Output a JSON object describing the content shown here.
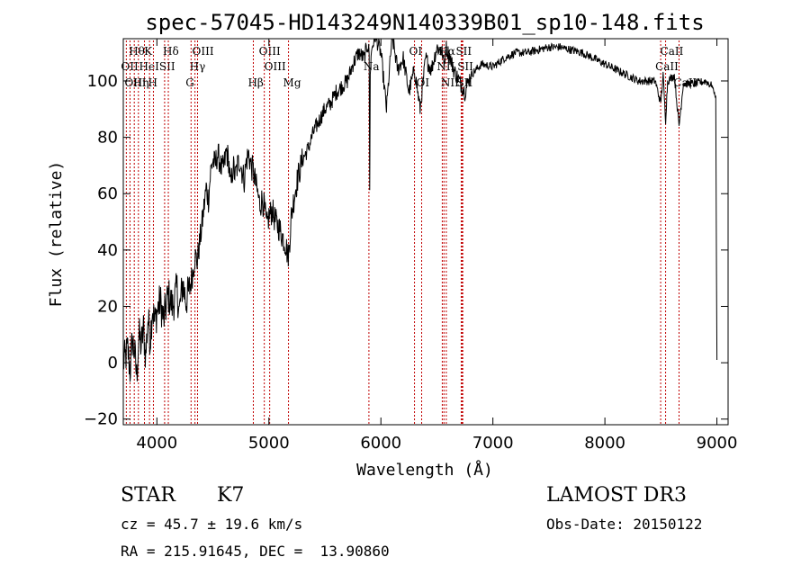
{
  "chart_data": {
    "type": "line",
    "title": "spec-57045-HD143249N140339B01_sp10-148.fits",
    "xlabel": "Wavelength (Å)",
    "ylabel": "Flux (relative)",
    "xlim": [
      3700,
      9100
    ],
    "ylim": [
      -22,
      115
    ],
    "x_ticks": [
      4000,
      5000,
      6000,
      7000,
      8000,
      9000
    ],
    "y_ticks": [
      -20,
      0,
      20,
      40,
      60,
      80,
      100
    ],
    "series": [
      {
        "name": "flux",
        "x": [
          3700,
          3720,
          3740,
          3760,
          3780,
          3800,
          3820,
          3840,
          3860,
          3880,
          3900,
          3920,
          3940,
          3960,
          3980,
          4000,
          4030,
          4060,
          4100,
          4140,
          4180,
          4200,
          4230,
          4260,
          4290,
          4320,
          4340,
          4360,
          4380,
          4400,
          4420,
          4440,
          4460,
          4480,
          4500,
          4520,
          4540,
          4560,
          4580,
          4600,
          4620,
          4640,
          4660,
          4680,
          4700,
          4720,
          4740,
          4760,
          4780,
          4800,
          4820,
          4840,
          4860,
          4880,
          4900,
          4920,
          4940,
          4960,
          4980,
          5000,
          5030,
          5060,
          5090,
          5120,
          5150,
          5170,
          5180,
          5190,
          5200,
          5230,
          5260,
          5300,
          5350,
          5400,
          5450,
          5500,
          5550,
          5600,
          5650,
          5700,
          5750,
          5800,
          5850,
          5880,
          5895,
          5900,
          5905,
          5920,
          5950,
          6000,
          6050,
          6100,
          6150,
          6200,
          6250,
          6300,
          6350,
          6400,
          6450,
          6500,
          6550,
          6563,
          6580,
          6620,
          6650,
          6700,
          6750,
          6800,
          6900,
          7000,
          7100,
          7200,
          7300,
          7400,
          7500,
          7600,
          7700,
          7800,
          7900,
          8000,
          8100,
          8200,
          8300,
          8400,
          8450,
          8498,
          8520,
          8542,
          8560,
          8620,
          8662,
          8700,
          8800,
          8900,
          8960,
          8990,
          9000
        ],
        "y": [
          0,
          2,
          5,
          -3,
          8,
          4,
          -5,
          10,
          6,
          12,
          2,
          16,
          8,
          20,
          14,
          18,
          22,
          15,
          24,
          20,
          26,
          18,
          28,
          22,
          26,
          32,
          38,
          36,
          42,
          48,
          55,
          62,
          58,
          68,
          72,
          70,
          74,
          72,
          68,
          70,
          75,
          72,
          62,
          70,
          66,
          70,
          72,
          68,
          65,
          72,
          74,
          70,
          68,
          64,
          60,
          56,
          58,
          55,
          48,
          52,
          54,
          50,
          48,
          45,
          42,
          38,
          40,
          46,
          52,
          60,
          66,
          72,
          76,
          82,
          86,
          90,
          92,
          96,
          98,
          100,
          106,
          110,
          108,
          113,
          110,
          60,
          104,
          112,
          116,
          110,
          90,
          116,
          104,
          108,
          96,
          104,
          90,
          108,
          104,
          112,
          110,
          105,
          112,
          108,
          104,
          100,
          96,
          102,
          106,
          105,
          108,
          110,
          110,
          111,
          112,
          112,
          111,
          110,
          108,
          106,
          104,
          102,
          100,
          100,
          100,
          92,
          102,
          86,
          100,
          102,
          84,
          99,
          99,
          100,
          98,
          94,
          1
        ]
      }
    ],
    "line_markers": [
      {
        "label": "Hθ",
        "x": 3798,
        "row": 1
      },
      {
        "label": "OII",
        "x": 3727,
        "row": 2
      },
      {
        "label": "OIII",
        "x": 3760,
        "row": 3
      },
      {
        "label": "K",
        "x": 3934,
        "row": 1
      },
      {
        "label": "HeI",
        "x": 3889,
        "row": 2
      },
      {
        "label": "Hη",
        "x": 3835,
        "row": 3
      },
      {
        "label": "SII",
        "x": 4069,
        "row": 2
      },
      {
        "label": "H",
        "x": 3969,
        "row": 3
      },
      {
        "label": "Hδ",
        "x": 4102,
        "row": 1
      },
      {
        "label": "OIII",
        "x": 4363,
        "row": 1
      },
      {
        "label": "Hγ",
        "x": 4340,
        "row": 2
      },
      {
        "label": "G",
        "x": 4305,
        "row": 3
      },
      {
        "label": "OIII",
        "x": 4959,
        "row": 1
      },
      {
        "label": "OIII",
        "x": 5007,
        "row": 2
      },
      {
        "label": "Hβ",
        "x": 4861,
        "row": 3
      },
      {
        "label": "Mg",
        "x": 5175,
        "row": 3
      },
      {
        "label": "Na",
        "x": 5893,
        "row": 2
      },
      {
        "label": "OI",
        "x": 6300,
        "row": 1
      },
      {
        "label": "OI",
        "x": 6364,
        "row": 3
      },
      {
        "label": "Hα",
        "x": 6563,
        "row": 1
      },
      {
        "label": "NII",
        "x": 6548,
        "row": 2
      },
      {
        "label": "NII",
        "x": 6584,
        "row": 3
      },
      {
        "label": "SII",
        "x": 6717,
        "row": 1
      },
      {
        "label": "SII",
        "x": 6731,
        "row": 2
      },
      {
        "label": "SII",
        "x": 6725,
        "row": 3
      },
      {
        "label": "CaII",
        "x": 8542,
        "row": 1
      },
      {
        "label": "CaII",
        "x": 8498,
        "row": 2
      },
      {
        "label": "CaII",
        "x": 8662,
        "row": 3
      }
    ]
  },
  "info": {
    "object_class": "STAR",
    "subclass": "K7",
    "survey": "LAMOST DR3",
    "velocity": "cz = 45.7 ± 19.6 km/s",
    "obs_date": "Obs-Date: 20150122",
    "coords": "RA = 215.91645, DEC =  13.90860"
  },
  "colors": {
    "line": "#000000",
    "marker": "#c00000",
    "background": "#ffffff"
  }
}
